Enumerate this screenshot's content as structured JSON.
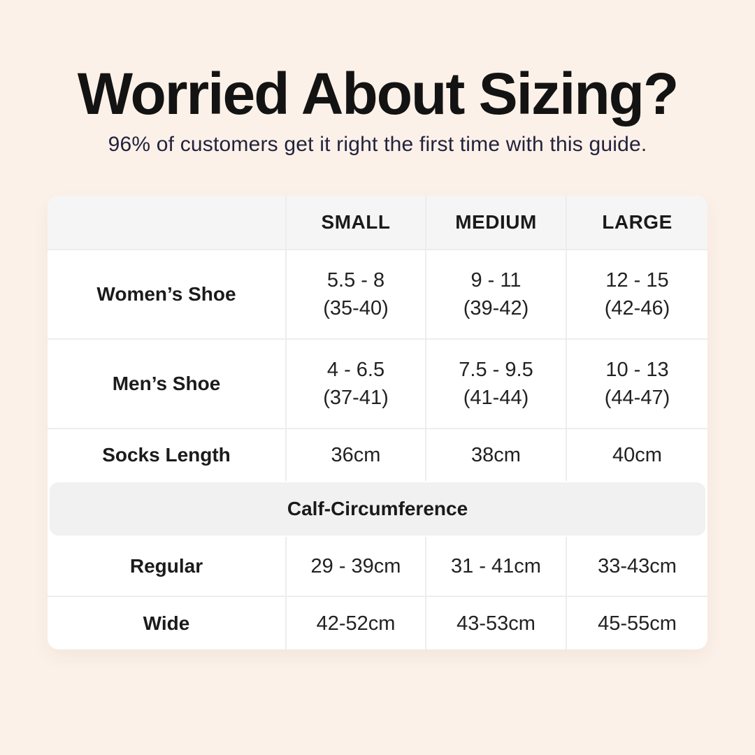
{
  "header": {
    "title": "Worried About Sizing?",
    "subtitle": "96% of customers get it right the first time with this guide."
  },
  "table": {
    "columns": [
      "SMALL",
      "MEDIUM",
      "LARGE"
    ],
    "rows": [
      {
        "label": "Women’s Shoe",
        "small": [
          "5.5 - 8",
          "(35-40)"
        ],
        "medium": [
          "9 - 11",
          "(39-42)"
        ],
        "large": [
          "12 - 15",
          "(42-46)"
        ]
      },
      {
        "label": "Men’s Shoe",
        "small": [
          "4 - 6.5",
          "(37-41)"
        ],
        "medium": [
          "7.5 - 9.5",
          "(41-44)"
        ],
        "large": [
          "10 - 13",
          "(44-47)"
        ]
      },
      {
        "label": "Socks Length",
        "small": [
          "36cm"
        ],
        "medium": [
          "38cm"
        ],
        "large": [
          "40cm"
        ]
      }
    ],
    "section_header": "Calf-Circumference",
    "section_rows": [
      {
        "label": "Regular",
        "small": "29 - 39cm",
        "medium": "31 - 41cm",
        "large": "33-43cm"
      },
      {
        "label": "Wide",
        "small": "42-52cm",
        "medium": "43-53cm",
        "large": "45-55cm"
      }
    ]
  },
  "colors": {
    "page_background": "#fcf1e8",
    "title_text": "#131313",
    "subtitle_text": "#23233e",
    "table_background": "#ffffff",
    "header_row_background": "#f5f5f5",
    "section_band_background": "#f1f1f1",
    "divider": "#ededed"
  }
}
